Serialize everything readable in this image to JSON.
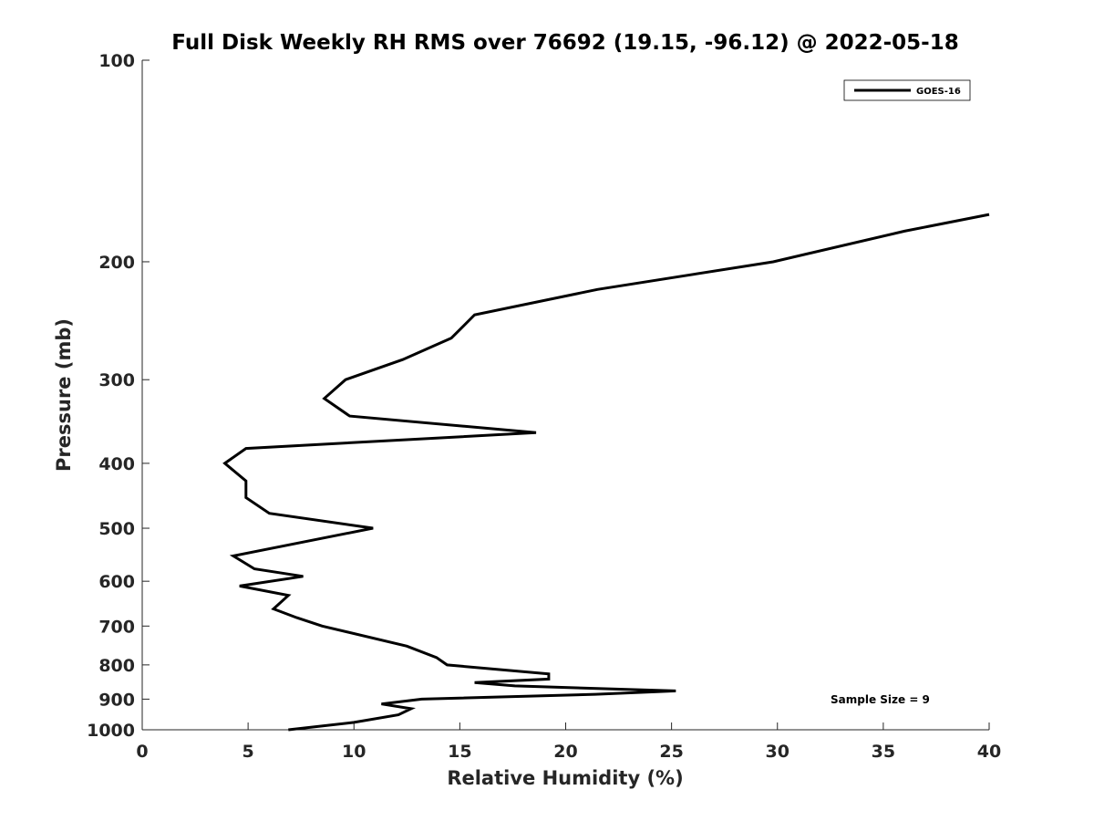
{
  "chart_data": {
    "type": "line",
    "title": "Full Disk Weekly RH RMS over 76692 (19.15, -96.12) @ 2022-05-18",
    "xlabel": "Relative Humidity (%)",
    "ylabel": "Pressure (mb)",
    "xlim": [
      0,
      40
    ],
    "ylim": [
      100,
      1000
    ],
    "y_scale": "log",
    "y_reversed": true,
    "grid": false,
    "legend_position": "top-right",
    "x_ticks": [
      0,
      5,
      10,
      15,
      20,
      25,
      30,
      35,
      40
    ],
    "x_tick_labels": [
      "0",
      "5",
      "10",
      "15",
      "20",
      "25",
      "30",
      "35",
      "40"
    ],
    "y_ticks": [
      100,
      200,
      300,
      400,
      500,
      600,
      700,
      800,
      900,
      1000
    ],
    "y_tick_labels": [
      "100",
      "200",
      "300",
      "400",
      "500",
      "600",
      "700",
      "800",
      "900",
      "1000"
    ],
    "series": [
      {
        "name": "GOES-16",
        "color": "#000000",
        "x": [
          40.0,
          36.0,
          29.8,
          21.5,
          15.7,
          14.6,
          12.3,
          9.6,
          8.6,
          9.8,
          18.6,
          4.9,
          3.9,
          4.9,
          4.9,
          6.0,
          10.9,
          4.3,
          5.3,
          7.6,
          4.6,
          6.9,
          6.2,
          7.3,
          8.5,
          12.5,
          13.9,
          14.4,
          19.2,
          19.2,
          15.7,
          17.6,
          25.2,
          21.4,
          13.2,
          11.3,
          12.7,
          12.1,
          10.0,
          6.9
        ],
        "y": [
          170,
          180,
          200,
          220,
          240,
          260,
          280,
          300,
          320,
          340,
          360,
          380,
          400,
          425,
          450,
          475,
          500,
          550,
          575,
          590,
          610,
          630,
          660,
          680,
          700,
          750,
          780,
          800,
          825,
          840,
          850,
          860,
          875,
          885,
          900,
          915,
          930,
          950,
          975,
          1000
        ]
      }
    ],
    "legend": [
      {
        "label": "GOES-16"
      }
    ],
    "annotations": [
      "Sample Size = 9"
    ]
  }
}
